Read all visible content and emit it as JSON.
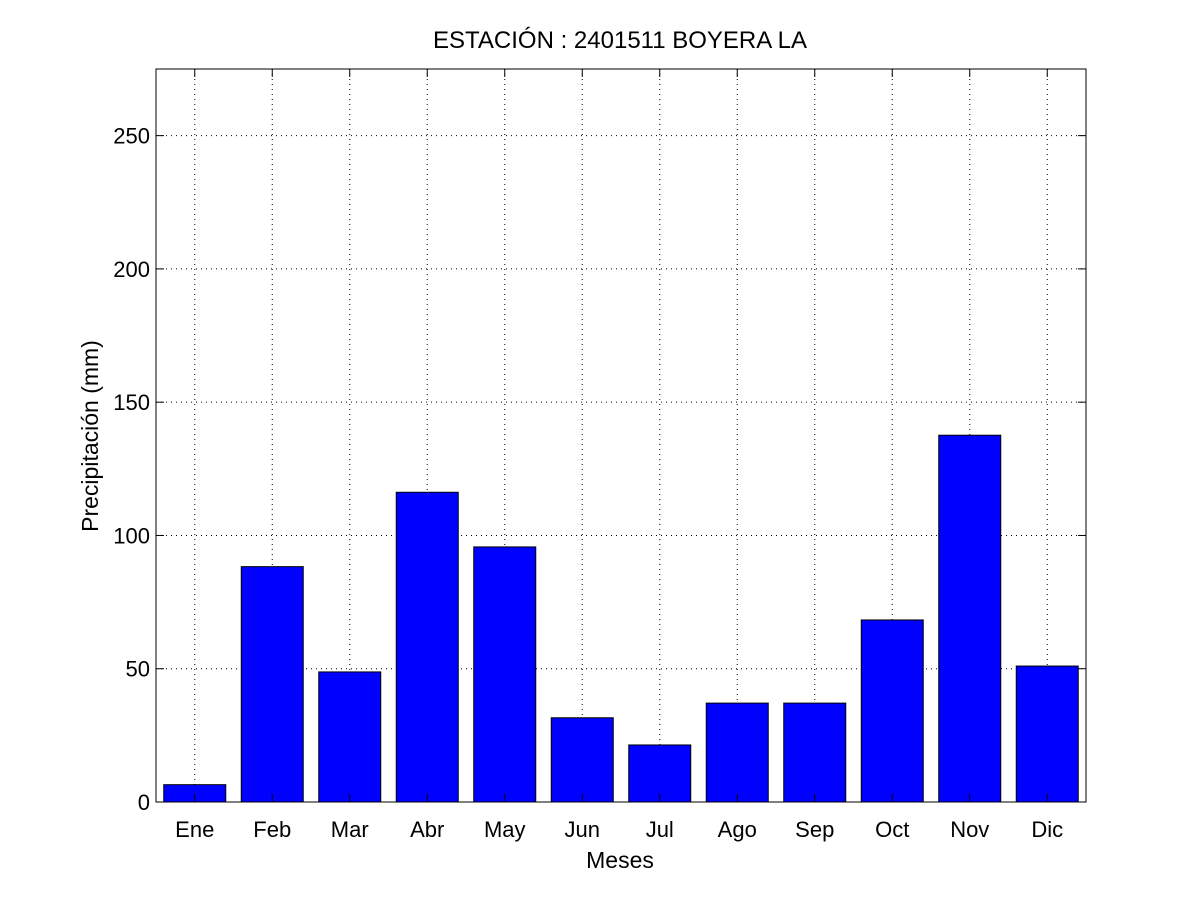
{
  "chart_data": {
    "type": "bar",
    "title": "ESTACIÓN :  2401511  BOYERA LA",
    "xlabel": "Meses",
    "ylabel": "Precipitación (mm)",
    "categories": [
      "Ene",
      "Feb",
      "Mar",
      "Abr",
      "May",
      "Jun",
      "Jul",
      "Ago",
      "Sep",
      "Oct",
      "Nov",
      "Dic"
    ],
    "values": [
      6.5,
      88.3,
      48.8,
      116.2,
      95.7,
      31.6,
      21.4,
      37.1,
      37.1,
      68.3,
      137.6,
      51.0
    ],
    "ylim": [
      0,
      275
    ],
    "yticks": [
      0,
      50,
      100,
      150,
      200,
      250
    ],
    "grid": true,
    "bar_color": "#0000ff",
    "edge_color": "#000000"
  }
}
